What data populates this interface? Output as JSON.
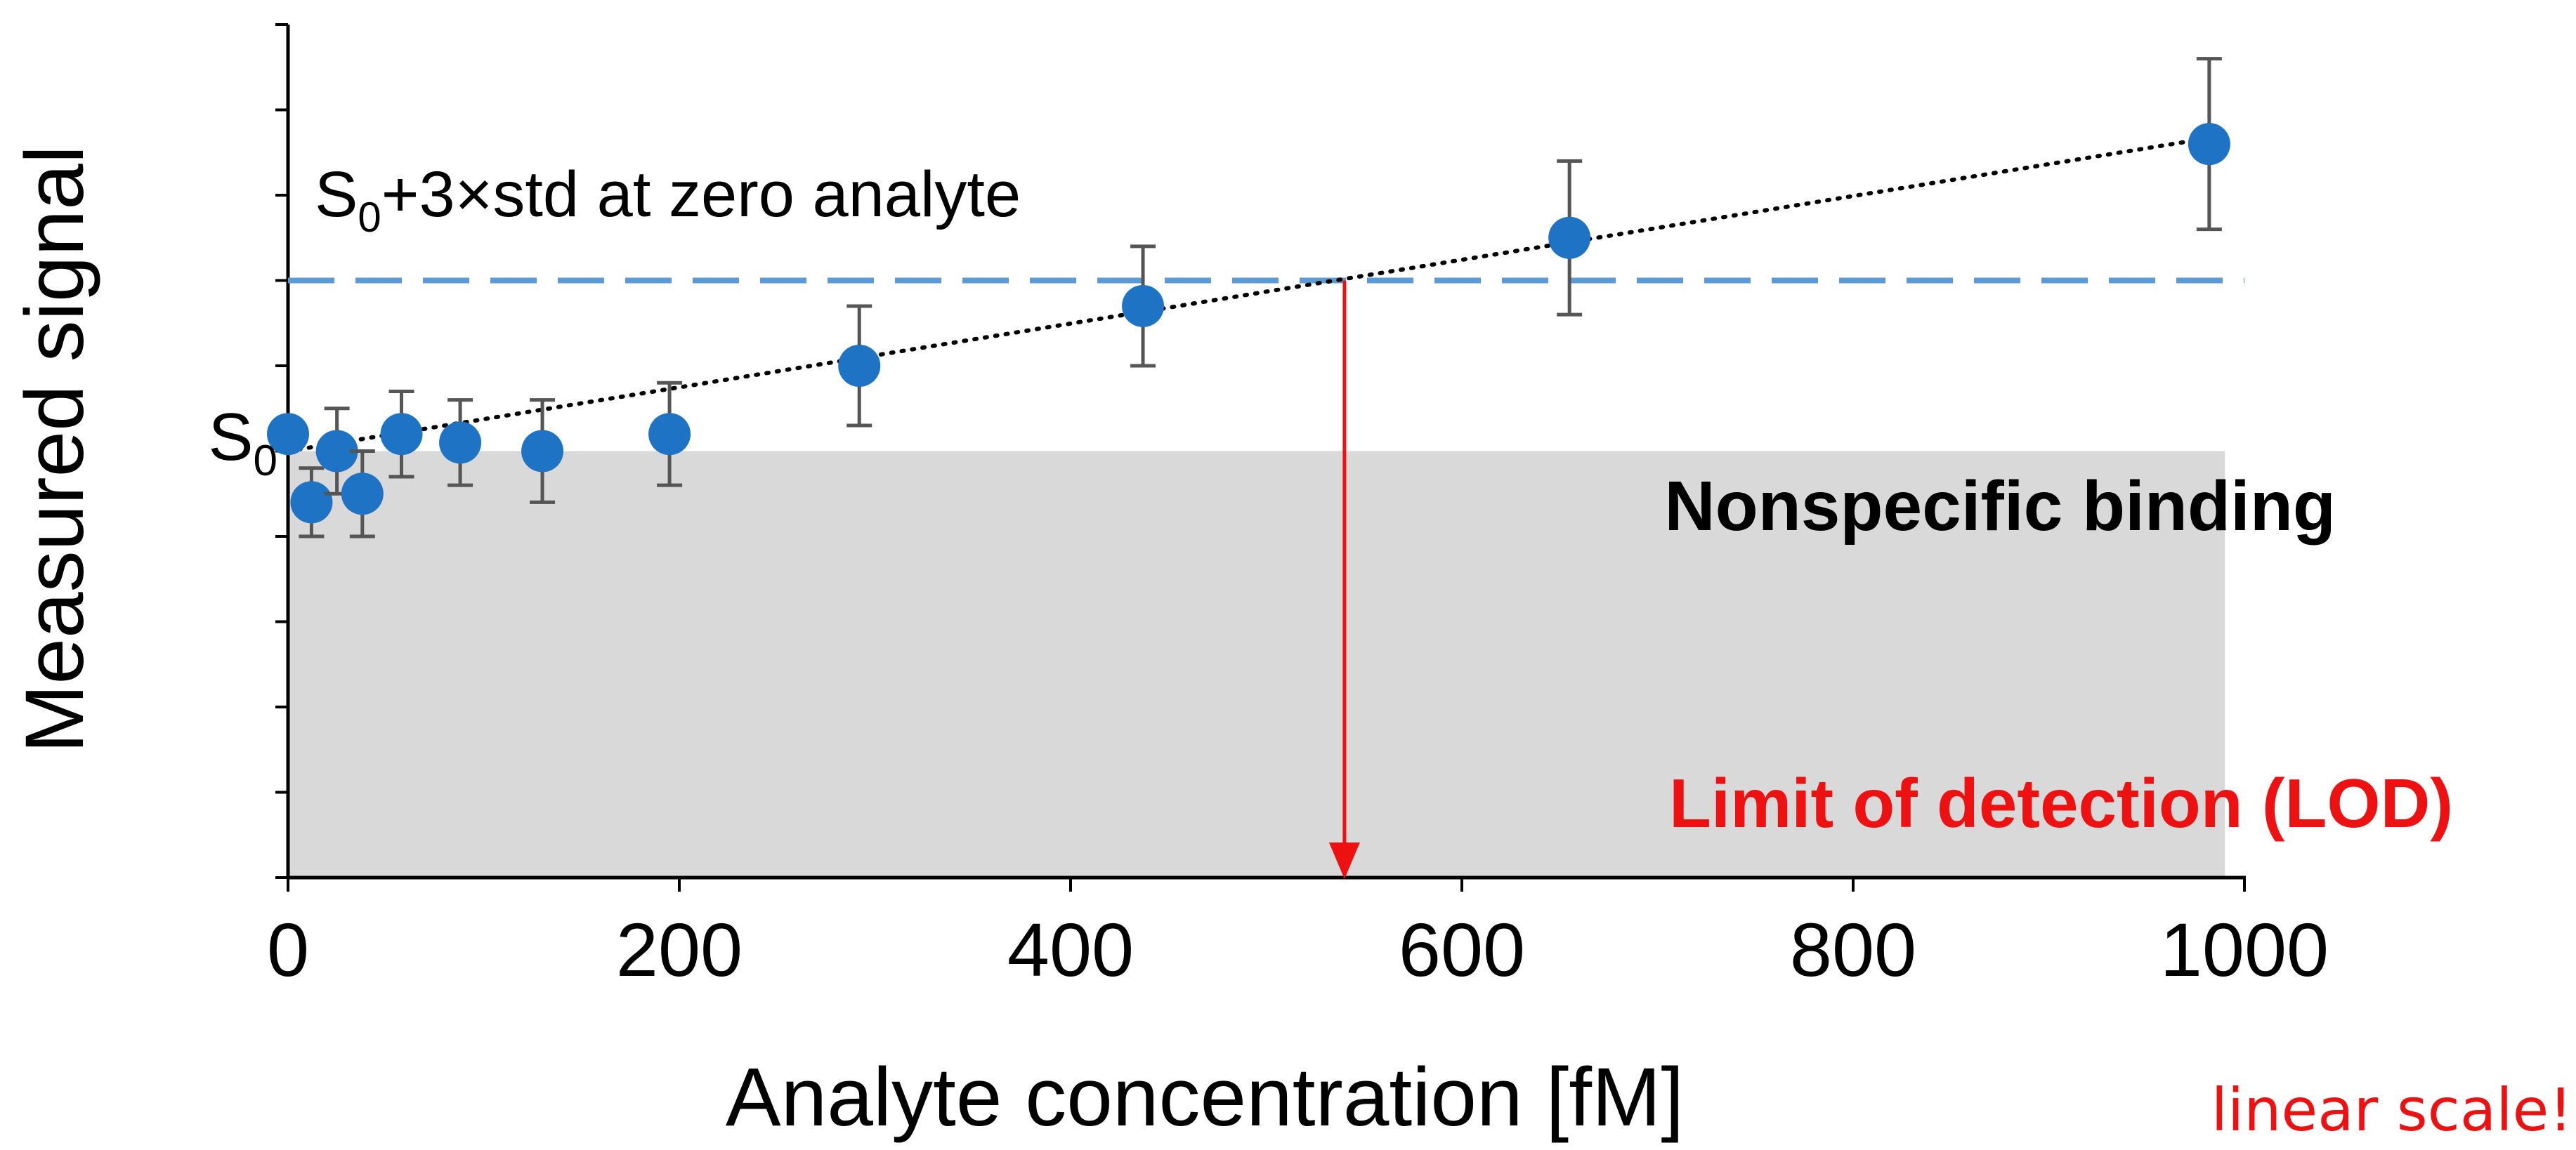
{
  "chart_data": {
    "type": "scatter",
    "xlabel": "Analyte concentration [fM]",
    "ylabel": "Measured signal",
    "xlim": [
      0,
      1000
    ],
    "x_ticks": [
      "0",
      "200",
      "400",
      "600",
      "800",
      "1000"
    ],
    "y_tick_label": "S",
    "y_tick_label_sub": "0",
    "y_tick_value": 0.45,
    "ylim": [
      0,
      1.0
    ],
    "y_tick_values": [
      0,
      0.1,
      0.2,
      0.3,
      0.4,
      0.5,
      0.6,
      0.7,
      0.8,
      0.9,
      1.0
    ],
    "grid": false,
    "points": [
      {
        "x": 0,
        "y": 0.52,
        "err": 0.0
      },
      {
        "x": 12,
        "y": 0.44,
        "err": 0.04
      },
      {
        "x": 25,
        "y": 0.5,
        "err": 0.05
      },
      {
        "x": 38,
        "y": 0.45,
        "err": 0.05
      },
      {
        "x": 58,
        "y": 0.52,
        "err": 0.05
      },
      {
        "x": 88,
        "y": 0.51,
        "err": 0.05
      },
      {
        "x": 130,
        "y": 0.5,
        "err": 0.06
      },
      {
        "x": 195,
        "y": 0.52,
        "err": 0.06
      },
      {
        "x": 292,
        "y": 0.6,
        "err": 0.07
      },
      {
        "x": 437,
        "y": 0.67,
        "err": 0.07
      },
      {
        "x": 655,
        "y": 0.75,
        "err": 0.09
      },
      {
        "x": 982,
        "y": 0.86,
        "err": 0.1
      }
    ],
    "fit_line": {
      "x": [
        0,
        990
      ],
      "y": [
        0.5,
        0.87
      ]
    },
    "threshold": {
      "y": 0.7,
      "label": "S",
      "label_sub": "0",
      "label_rest": "+3×std at zero analyte"
    },
    "lod": {
      "x": 540
    },
    "background_region": {
      "x": [
        0,
        990
      ],
      "y": [
        0,
        0.5
      ],
      "label": "Nonspecific binding"
    },
    "annotations": {
      "lod_label": "Limit of detection (LOD)",
      "scale_note": "linear scale!"
    },
    "colors": {
      "points": "#1f73c4",
      "error_bars": "#555555",
      "threshold_line": "#5b9bd5",
      "fit_line": "#000000",
      "lod_arrow": "#ee1111",
      "region_fill": "#d9d9d9",
      "annotation_text": "#ee1111"
    }
  }
}
